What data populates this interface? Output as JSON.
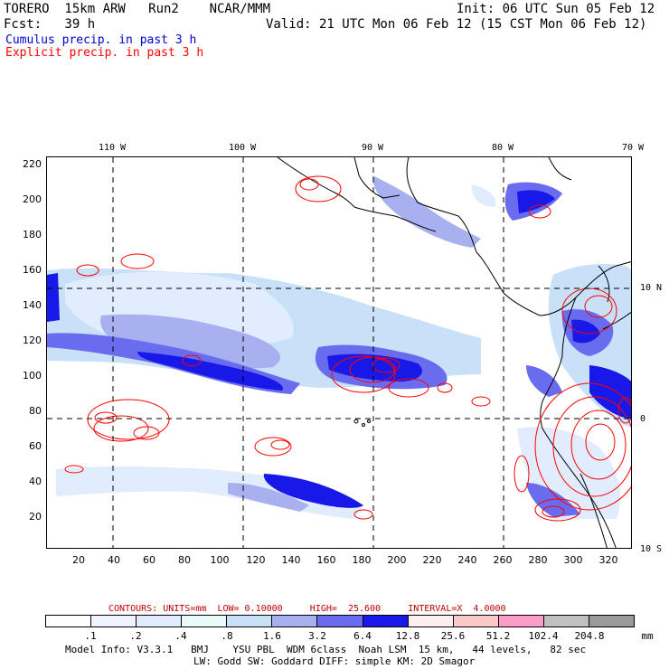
{
  "header": {
    "title_left": "TORERO  15km ARW   Run2    NCAR/MMM",
    "init": "Init: 06 UTC Sun 05 Feb 12",
    "fcst": "Fcst:   39 h",
    "valid": "Valid: 21 UTC Mon 06 Feb 12 (15 CST Mon 06 Feb 12)"
  },
  "legend": {
    "cumulus": "Cumulus precip. in past 3 h",
    "explicit": "Explicit precip. in past 3 h",
    "cumulus_color": "#0000cc",
    "explicit_color": "#ff0000"
  },
  "lon_labels": [
    "110 W",
    "100 W",
    "90 W",
    "80 W",
    "70 W"
  ],
  "lat_labels": [
    "10 N",
    "0",
    "10 S"
  ],
  "y_ticks": [
    "220",
    "200",
    "180",
    "160",
    "140",
    "120",
    "100",
    "80",
    "60",
    "40",
    "20"
  ],
  "x_ticks": [
    "20",
    "40",
    "60",
    "80",
    "100",
    "120",
    "140",
    "160",
    "180",
    "200",
    "220",
    "240",
    "260",
    "280",
    "300",
    "320"
  ],
  "contours": {
    "label": "CONTOURS:",
    "units": "UNITS=mm",
    "low": "LOW= 0.10000",
    "high": "HIGH=  25.600",
    "interval": "INTERVAL=X  4.0000"
  },
  "colorbar": {
    "labels": [
      ".1",
      ".2",
      ".4",
      ".8",
      "1.6",
      "3.2",
      "6.4",
      "12.8",
      "25.6",
      "51.2",
      "102.4",
      "204.8",
      "mm"
    ],
    "colors": [
      "#ffffff",
      "#eef3ff",
      "#e1ecff",
      "#e9fbfb",
      "#c8e0f8",
      "#a8b0f0",
      "#6a6cf0",
      "#1818e8",
      "#fff0f0",
      "#ffc8c8",
      "#ff9cc8",
      "#c0c0c0",
      "#9a9a9a",
      "#dcb0f8"
    ]
  },
  "model_info": {
    "line1": "Model Info: V3.3.1   BMJ    YSU PBL  WDM 6class  Noah LSM  15 km,   44 levels,   82 sec",
    "line2": "LW: Godd SW: Goddard DIFF: simple KM: 2D Smagor"
  }
}
